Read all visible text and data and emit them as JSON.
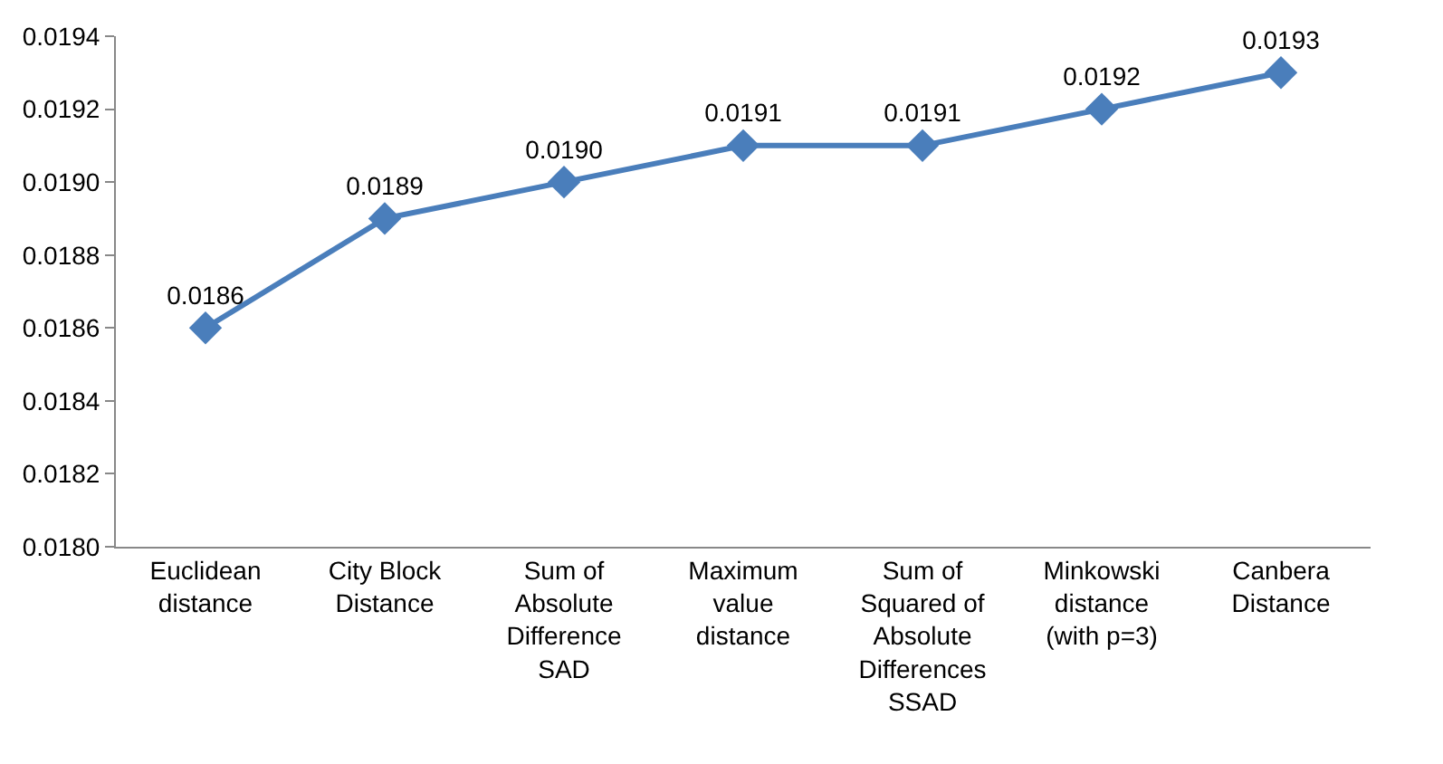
{
  "chart_data": {
    "type": "line",
    "categories": [
      "Euclidean\ndistance",
      "City Block\nDistance",
      "Sum of\nAbsolute\nDifference\nSAD",
      "Maximum\nvalue\ndistance",
      "Sum of\nSquared of\nAbsolute\nDifferences\nSSAD",
      "Minkowski\ndistance\n(with p=3)",
      "Canbera\nDistance"
    ],
    "series": [
      {
        "color": "#4a7ebb",
        "values": [
          0.0186,
          0.0189,
          0.019,
          0.0191,
          0.0191,
          0.0192,
          0.0193
        ],
        "value_labels": [
          "0.0186",
          "0.0189",
          "0.0190",
          "0.0191",
          "0.0191",
          "0.0192",
          "0.0193"
        ]
      }
    ],
    "ylim": [
      0.018,
      0.0194
    ],
    "yticks": [
      {
        "value": 0.018,
        "label": "0.0180"
      },
      0.0182,
      0.0184,
      0.0186,
      0.0188,
      {
        "value": 0.019,
        "label": "0.0190"
      },
      0.0192,
      0.0194
    ],
    "marker": "diamond",
    "line_style": "solid"
  }
}
